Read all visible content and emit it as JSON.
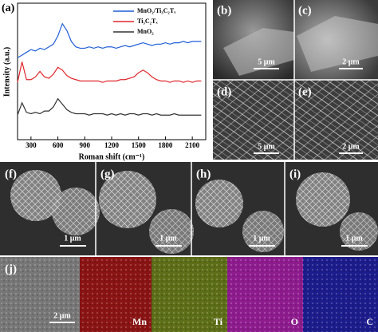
{
  "chart_data": {
    "type": "line",
    "panel_label": "(a)",
    "xlabel": "Roman shift (cm⁻¹)",
    "ylabel": "Intensity (a.u.)",
    "x": [
      150,
      200,
      250,
      300,
      350,
      400,
      450,
      500,
      550,
      600,
      650,
      700,
      750,
      800,
      850,
      900,
      950,
      1000,
      1050,
      1100,
      1150,
      1200,
      1250,
      1300,
      1350,
      1400,
      1450,
      1500,
      1550,
      1600,
      1650,
      1700,
      1750,
      1800,
      1850,
      1900,
      1950,
      2000,
      2050,
      2100,
      2150,
      2200
    ],
    "xlim": [
      150,
      2250
    ],
    "xticks": [
      300,
      600,
      900,
      1200,
      1500,
      1800,
      2100
    ],
    "ylim": [
      0,
      100
    ],
    "series": [
      {
        "name": "MnO₂/Ti₃C₂Tₓ",
        "color": "#1f5fd6",
        "values": [
          60,
          62,
          64,
          66,
          65,
          67,
          66,
          68,
          70,
          76,
          85,
          80,
          72,
          68,
          67,
          67,
          68,
          67,
          68,
          67,
          68,
          68,
          67,
          68,
          69,
          68,
          69,
          70,
          71,
          70,
          69,
          70,
          70,
          71,
          70,
          71,
          71,
          72,
          71,
          72,
          72,
          72
        ]
      },
      {
        "name": "Ti₃C₂Tₓ",
        "color": "#e0262b",
        "values": [
          42,
          57,
          44,
          44,
          46,
          50,
          46,
          45,
          48,
          53,
          51,
          47,
          45,
          44,
          43,
          43,
          43,
          43,
          43,
          42,
          43,
          43,
          43,
          44,
          44,
          45,
          46,
          49,
          51,
          49,
          46,
          44,
          43,
          43,
          42,
          43,
          43,
          42,
          43,
          42,
          43,
          43
        ]
      },
      {
        "name": "MnO₂",
        "color": "#333333",
        "values": [
          18,
          27,
          20,
          19,
          20,
          19,
          21,
          21,
          24,
          30,
          26,
          22,
          20,
          19,
          19,
          19,
          18,
          19,
          19,
          19,
          18,
          19,
          18,
          19,
          18,
          19,
          19,
          18,
          19,
          19,
          18,
          19,
          18,
          18,
          18,
          19,
          18,
          18,
          18,
          18,
          18,
          18
        ]
      }
    ]
  },
  "panels": [
    {
      "label": "(b)",
      "scale": "5 μm"
    },
    {
      "label": "(c)",
      "scale": "2 μm"
    },
    {
      "label": "(d)",
      "scale": "5 μm"
    },
    {
      "label": "(e)",
      "scale": "2 μm"
    },
    {
      "label": "(f)",
      "scale": "1 μm"
    },
    {
      "label": "(g)",
      "scale": "1 μm"
    },
    {
      "label": "(h)",
      "scale": "1 μm"
    },
    {
      "label": "(i)",
      "scale": "1 μm"
    },
    {
      "label": "(j)",
      "scale": "2 μm"
    }
  ],
  "maps": [
    "Mn",
    "Ti",
    "O",
    "C"
  ]
}
